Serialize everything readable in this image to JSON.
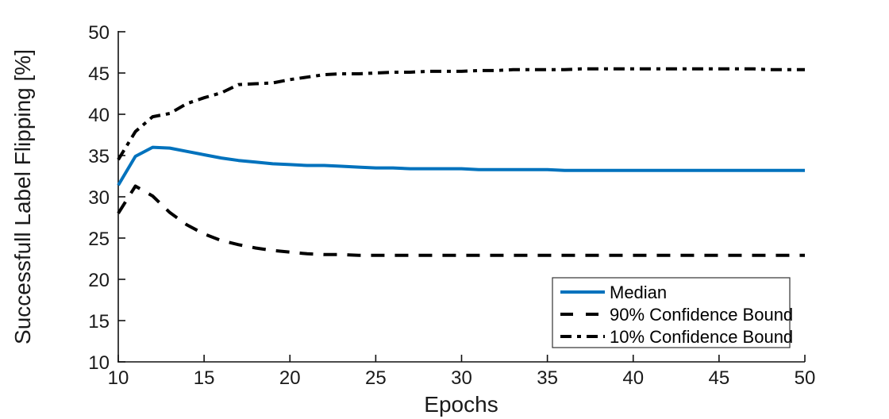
{
  "figure": {
    "background": "#ffffff"
  },
  "legend": {
    "items": [
      {
        "label": "Median",
        "style": "solid",
        "color": "#0072BD"
      },
      {
        "label": "90% Confidence Bound",
        "style": "dashed",
        "color": "#000000"
      },
      {
        "label": "10% Confidence Bound",
        "style": "dashdot",
        "color": "#000000"
      }
    ]
  },
  "chart_data": {
    "type": "line",
    "title": "",
    "xlabel": "Epochs",
    "ylabel": "Successfull Label Flipping [%]",
    "xlim": [
      10,
      50
    ],
    "ylim": [
      10,
      50
    ],
    "x_ticks": [
      10,
      15,
      20,
      25,
      30,
      35,
      40,
      45,
      50
    ],
    "y_ticks": [
      10,
      15,
      20,
      25,
      30,
      35,
      40,
      45,
      50
    ],
    "grid": false,
    "legend_position": "lower-right-inside",
    "x": [
      10,
      11,
      12,
      13,
      14,
      15,
      16,
      17,
      18,
      19,
      20,
      21,
      22,
      23,
      24,
      25,
      26,
      27,
      28,
      29,
      30,
      31,
      32,
      33,
      34,
      35,
      36,
      37,
      38,
      39,
      40,
      41,
      42,
      43,
      44,
      45,
      46,
      47,
      48,
      49,
      50
    ],
    "series": [
      {
        "name": "Median",
        "style": "solid",
        "color": "#0072BD",
        "values": [
          31.4,
          34.9,
          36.0,
          35.9,
          35.5,
          35.1,
          34.7,
          34.4,
          34.2,
          34.0,
          33.9,
          33.8,
          33.8,
          33.7,
          33.6,
          33.5,
          33.5,
          33.4,
          33.4,
          33.4,
          33.4,
          33.3,
          33.3,
          33.3,
          33.3,
          33.3,
          33.2,
          33.2,
          33.2,
          33.2,
          33.2,
          33.2,
          33.2,
          33.2,
          33.2,
          33.2,
          33.2,
          33.2,
          33.2,
          33.2,
          33.2
        ]
      },
      {
        "name": "90% Confidence Bound",
        "style": "dashed",
        "color": "#000000",
        "values": [
          28.0,
          31.3,
          30.1,
          28.1,
          26.6,
          25.5,
          24.7,
          24.2,
          23.8,
          23.5,
          23.3,
          23.1,
          23.0,
          23.0,
          22.9,
          22.9,
          22.9,
          22.9,
          22.9,
          22.9,
          22.9,
          22.9,
          22.9,
          22.9,
          22.9,
          22.9,
          22.9,
          22.9,
          22.9,
          22.9,
          22.9,
          22.9,
          22.9,
          22.9,
          22.9,
          22.9,
          22.9,
          22.9,
          22.9,
          22.9,
          22.9
        ]
      },
      {
        "name": "10% Confidence Bound",
        "style": "dashdot",
        "color": "#000000",
        "values": [
          34.5,
          37.9,
          39.7,
          40.1,
          41.3,
          42.0,
          42.6,
          43.6,
          43.7,
          43.8,
          44.2,
          44.5,
          44.8,
          44.9,
          44.9,
          45.0,
          45.1,
          45.1,
          45.2,
          45.2,
          45.2,
          45.3,
          45.3,
          45.4,
          45.4,
          45.4,
          45.4,
          45.5,
          45.5,
          45.5,
          45.5,
          45.5,
          45.5,
          45.5,
          45.5,
          45.5,
          45.5,
          45.5,
          45.4,
          45.4,
          45.4
        ]
      }
    ]
  }
}
